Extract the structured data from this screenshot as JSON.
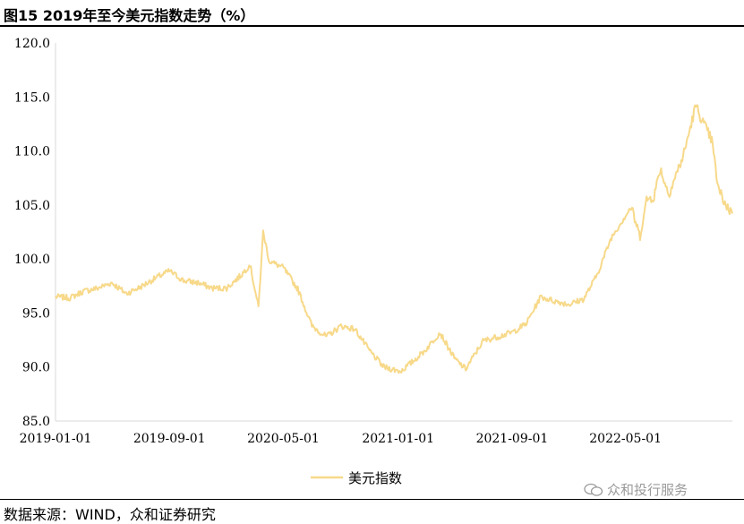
{
  "header": {
    "title": "图15 2019年至今美元指数走势（%）"
  },
  "footer": {
    "source": "数据来源：WIND，众和证券研究",
    "watermark": "众和投行服务"
  },
  "chart_data": {
    "type": "line",
    "title": "图15 2019年至今美元指数走势（%）",
    "xlabel": "",
    "ylabel": "",
    "ylim": [
      85.0,
      120.0
    ],
    "yticks": [
      "85.0",
      "90.0",
      "95.0",
      "100.0",
      "105.0",
      "110.0",
      "115.0",
      "120.0"
    ],
    "xticks": [
      "2019-01-01",
      "2019-09-01",
      "2020-05-01",
      "2021-01-01",
      "2021-09-01",
      "2022-05-01"
    ],
    "xlim": [
      "2019-01-01",
      "2022-12-15"
    ],
    "grid": false,
    "legend": "bottom-center",
    "colors": {
      "series": "#F7D98A"
    },
    "series": [
      {
        "name": "美元指数",
        "x": [
          "2019-01-01",
          "2019-02-01",
          "2019-03-01",
          "2019-04-01",
          "2019-05-01",
          "2019-06-01",
          "2019-07-01",
          "2019-08-01",
          "2019-09-01",
          "2019-10-01",
          "2019-11-01",
          "2019-12-01",
          "2020-01-01",
          "2020-02-01",
          "2020-02-20",
          "2020-03-09",
          "2020-03-19",
          "2020-04-01",
          "2020-05-01",
          "2020-06-01",
          "2020-07-01",
          "2020-08-01",
          "2020-09-01",
          "2020-10-01",
          "2020-11-01",
          "2020-12-01",
          "2021-01-06",
          "2021-02-01",
          "2021-03-01",
          "2021-03-31",
          "2021-05-01",
          "2021-05-25",
          "2021-07-01",
          "2021-08-01",
          "2021-09-01",
          "2021-10-01",
          "2021-11-01",
          "2021-12-01",
          "2022-01-01",
          "2022-02-01",
          "2022-03-01",
          "2022-04-01",
          "2022-05-01",
          "2022-05-13",
          "2022-06-01",
          "2022-06-15",
          "2022-07-01",
          "2022-07-14",
          "2022-08-01",
          "2022-09-01",
          "2022-09-28",
          "2022-10-15",
          "2022-11-01",
          "2022-11-15",
          "2022-12-01",
          "2022-12-15"
        ],
        "values": [
          96.5,
          96.4,
          97.0,
          97.3,
          97.8,
          96.8,
          97.4,
          98.2,
          98.9,
          98.0,
          97.8,
          97.3,
          97.3,
          98.5,
          99.5,
          95.5,
          102.5,
          99.8,
          99.2,
          97.2,
          93.8,
          92.8,
          93.8,
          93.5,
          91.5,
          90.0,
          89.6,
          90.5,
          91.6,
          93.2,
          90.8,
          89.8,
          92.4,
          92.8,
          93.2,
          94.0,
          96.5,
          96.1,
          95.8,
          96.3,
          98.5,
          102.0,
          104.0,
          104.8,
          102.0,
          105.5,
          105.8,
          108.4,
          106.0,
          109.5,
          114.2,
          112.5,
          111.0,
          106.5,
          105.0,
          104.2
        ]
      }
    ]
  }
}
